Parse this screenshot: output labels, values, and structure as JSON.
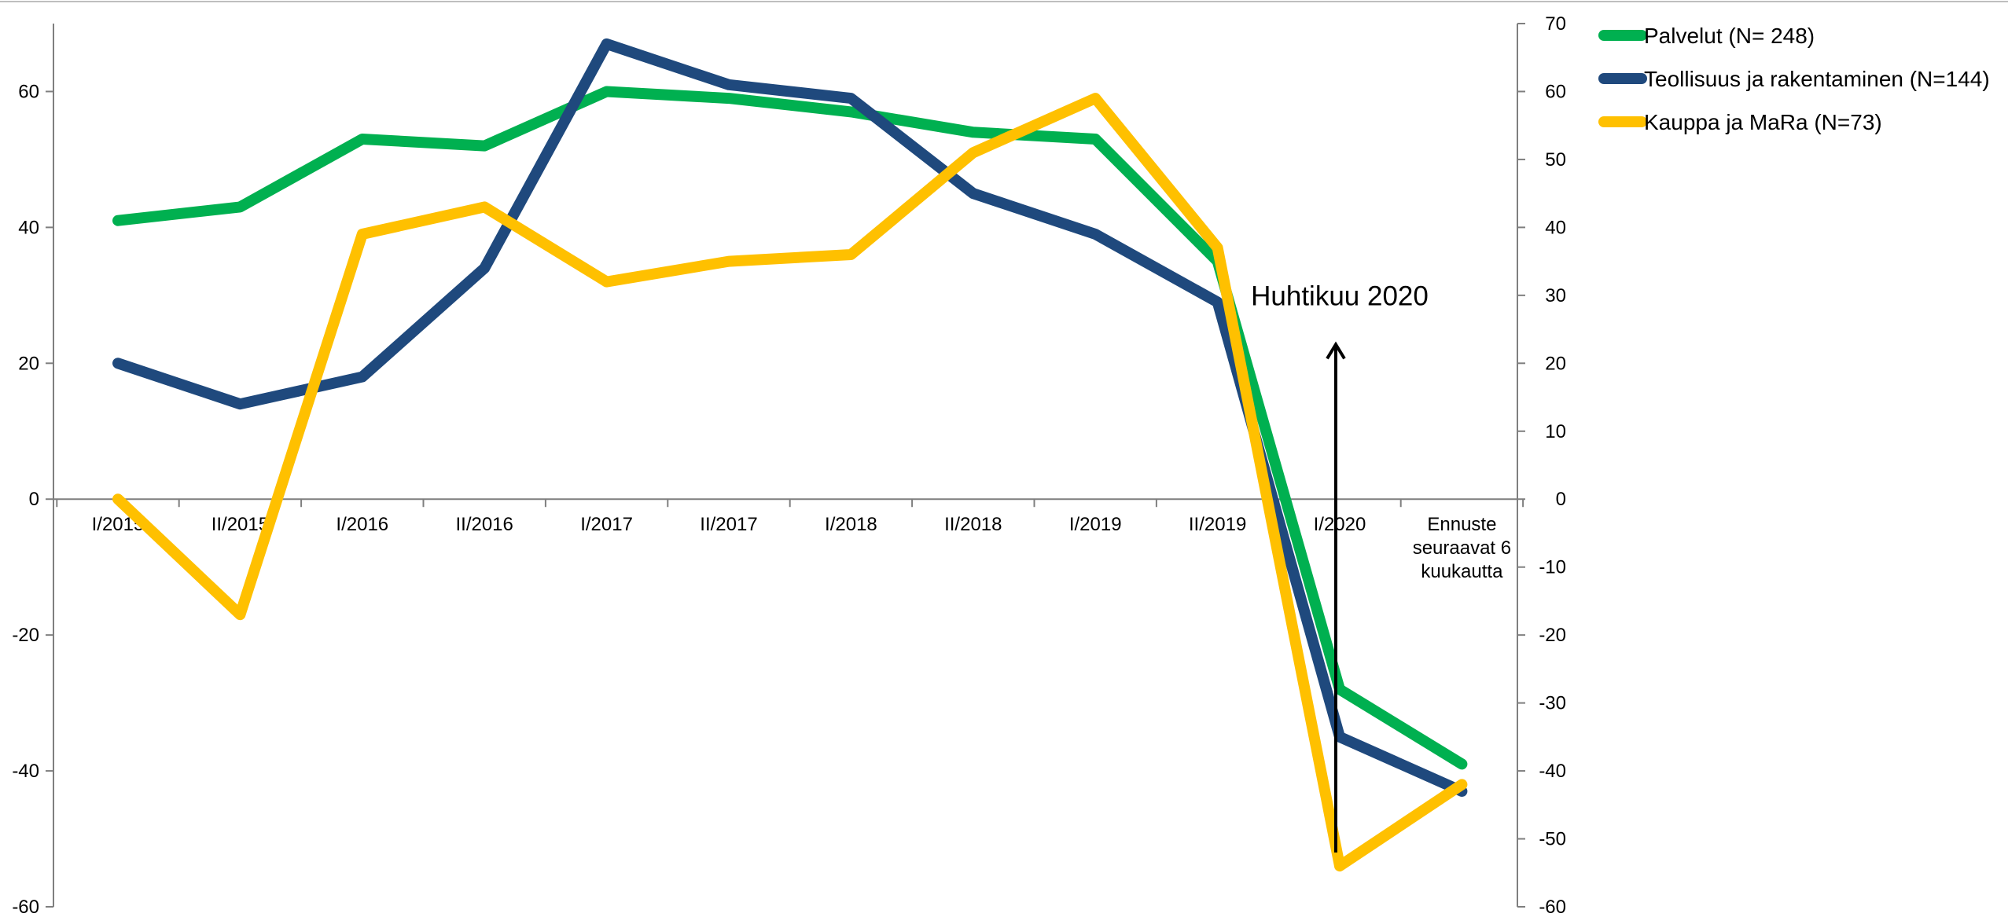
{
  "chart_data": {
    "type": "line",
    "categories": [
      "I/2015",
      "II/2015",
      "I/2016",
      "II/2016",
      "I/2017",
      "II/2017",
      "I/2018",
      "II/2018",
      "I/2019",
      "II/2019",
      "I/2020",
      "Ennuste seuraavat 6 kuukautta"
    ],
    "category_lines": [
      [
        "I/2015"
      ],
      [
        "II/2015"
      ],
      [
        "I/2016"
      ],
      [
        "II/2016"
      ],
      [
        "I/2017"
      ],
      [
        "II/2017"
      ],
      [
        "I/2018"
      ],
      [
        "II/2018"
      ],
      [
        "I/2019"
      ],
      [
        "II/2019"
      ],
      [
        "I/2020"
      ],
      [
        "Ennuste",
        "seuraavat 6",
        "kuukautta"
      ]
    ],
    "y_left": {
      "min": -60,
      "max": 70,
      "ticks": [
        60,
        40,
        20,
        0,
        -20,
        -40,
        -60
      ]
    },
    "y_right": {
      "min": -60,
      "max": 70,
      "ticks": [
        70,
        60,
        50,
        40,
        30,
        20,
        10,
        0,
        -10,
        -20,
        -30,
        -40,
        -50,
        -60
      ]
    },
    "series": [
      {
        "name": "Palvelut (N= 248)",
        "color": "#00b050",
        "values": [
          41,
          43,
          53,
          52,
          60,
          59,
          57,
          54,
          53,
          35,
          -28,
          -39
        ]
      },
      {
        "name": "Teollisuus ja rakentaminen (N=144)",
        "color": "#1f497d",
        "values": [
          20,
          14,
          18,
          34,
          67,
          61,
          59,
          45,
          39,
          29,
          -35,
          -43
        ]
      },
      {
        "name": "Kauppa ja MaRa (N=73)",
        "color": "#ffc000",
        "values": [
          0,
          -17,
          39,
          43,
          32,
          35,
          36,
          51,
          59,
          37,
          -54,
          -42
        ]
      }
    ],
    "annotations": [
      {
        "text": "Huhtikuu 2020",
        "arrow_category": "I/2020",
        "arrow_from": -52,
        "arrow_to": 23
      }
    ],
    "legend_position": "right",
    "grid": false
  }
}
